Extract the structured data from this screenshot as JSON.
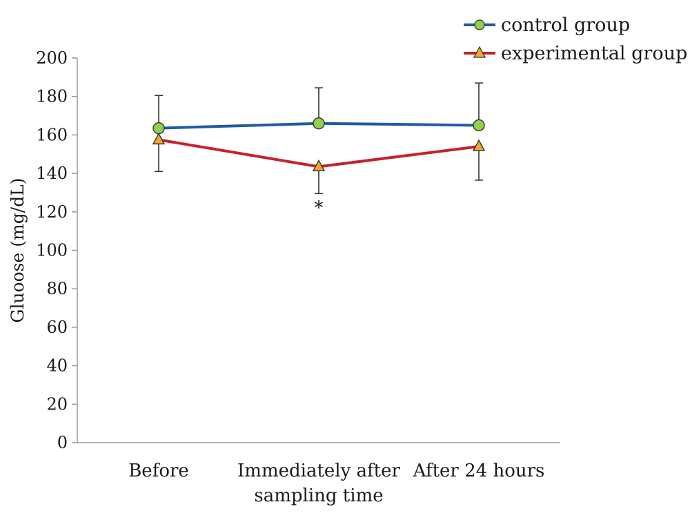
{
  "chart_data": {
    "type": "line",
    "title": "",
    "xlabel": "",
    "ylabel": "Gluoose (mg/dL)",
    "ylim": [
      0,
      200
    ],
    "yticks": [
      0,
      20,
      40,
      60,
      80,
      100,
      120,
      140,
      160,
      180,
      200
    ],
    "grid": false,
    "legend_position": "top-right",
    "categories": [
      [
        "Before"
      ],
      [
        "Immediately after",
        "sampling time"
      ],
      [
        "After 24 hours"
      ]
    ],
    "series": [
      {
        "name": "control group",
        "values": [
          163.5,
          166,
          165
        ],
        "error_upper": [
          180.5,
          184.5,
          187
        ],
        "line_color": "#1f5aa8",
        "marker": "circle",
        "marker_color": "#8fd14f"
      },
      {
        "name": "experimental group",
        "values": [
          157.5,
          143.5,
          154
        ],
        "error_lower": [
          141,
          129.5,
          136.5
        ],
        "line_color": "#c8202a",
        "marker": "triangle",
        "marker_color": "#f0a830"
      }
    ],
    "annotations": [
      {
        "text": "*",
        "category_index": 1,
        "y": 124
      }
    ]
  }
}
